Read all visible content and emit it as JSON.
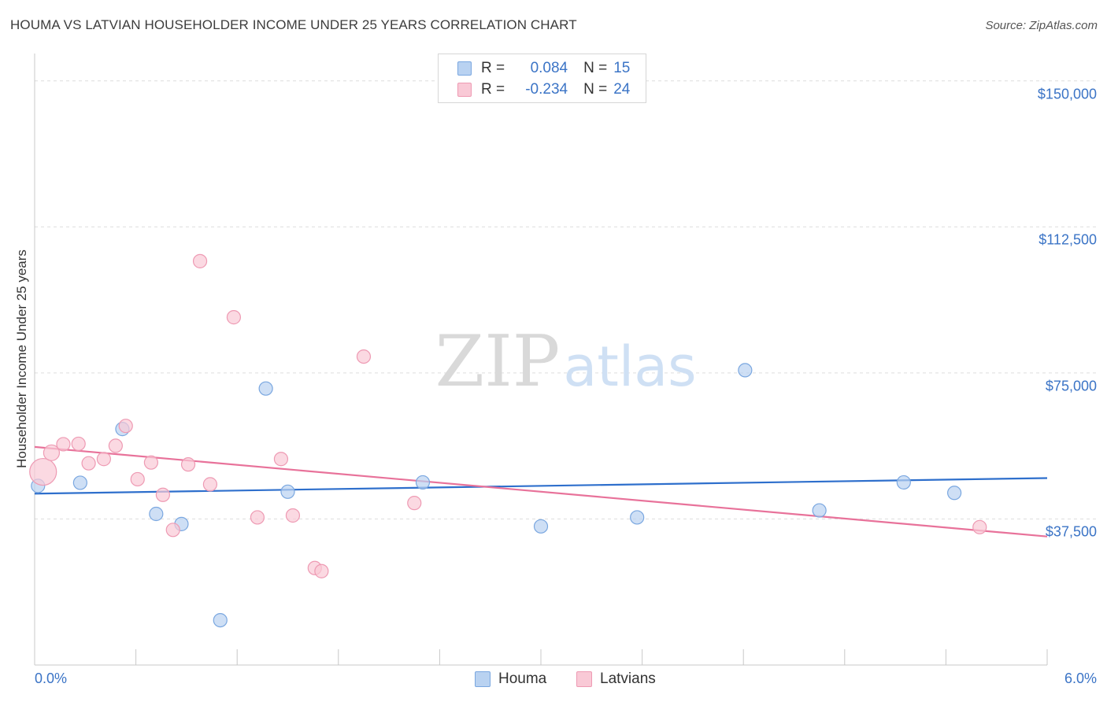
{
  "title": "HOUMA VS LATVIAN HOUSEHOLDER INCOME UNDER 25 YEARS CORRELATION CHART",
  "source": "Source: ZipAtlas.com",
  "watermark": {
    "zip": "ZIP",
    "atlas": "atlas"
  },
  "colors": {
    "houma_fill": "#b9d2f1",
    "houma_stroke": "#7aa7e0",
    "houma_line": "#2e6fcc",
    "latvians_fill": "#f9c9d6",
    "latvians_stroke": "#ee9ab3",
    "latvians_line": "#e8729a",
    "tick_text": "#3b74c6",
    "grid": "#dddddd"
  },
  "legend": {
    "rows": [
      {
        "r_label": "R =",
        "r_value": "0.084",
        "n_label": "N =",
        "n_value": "15"
      },
      {
        "r_label": "R =",
        "r_value": "-0.234",
        "n_label": "N =",
        "n_value": "24"
      }
    ]
  },
  "bottom_legend": [
    "Houma",
    "Latvians"
  ],
  "chart_data": {
    "type": "scatter",
    "title": "HOUMA VS LATVIAN HOUSEHOLDER INCOME UNDER 25 YEARS CORRELATION CHART",
    "xlabel": "",
    "ylabel": "Householder Income Under 25 years",
    "xlim": [
      0,
      6
    ],
    "ylim": [
      0,
      155000
    ],
    "x_tick_labels": [
      "0.0%",
      "6.0%"
    ],
    "y_ticks": [
      37500,
      75000,
      112500,
      150000
    ],
    "y_tick_labels": [
      "$37,500",
      "$75,000",
      "$112,500",
      "$150,000"
    ],
    "grid": true,
    "legend_position": "top-center",
    "series": [
      {
        "name": "Houma",
        "points": [
          [
            0.02,
            46000
          ],
          [
            0.27,
            46800
          ],
          [
            0.52,
            60600
          ],
          [
            0.72,
            38800
          ],
          [
            0.87,
            36200
          ],
          [
            1.1,
            11500
          ],
          [
            1.37,
            71000
          ],
          [
            1.5,
            44500
          ],
          [
            2.3,
            46900
          ],
          [
            3.0,
            35600
          ],
          [
            3.57,
            37900
          ],
          [
            4.21,
            75700
          ],
          [
            4.65,
            39700
          ],
          [
            5.15,
            46900
          ],
          [
            5.45,
            44200
          ]
        ],
        "trend": {
          "x": [
            0,
            6
          ],
          "y": [
            44000,
            48000
          ]
        }
      },
      {
        "name": "Latvians",
        "points": [
          [
            0.05,
            49600
          ],
          [
            0.1,
            54500
          ],
          [
            0.17,
            56700
          ],
          [
            0.26,
            56800
          ],
          [
            0.32,
            51800
          ],
          [
            0.41,
            52900
          ],
          [
            0.48,
            56300
          ],
          [
            0.54,
            61400
          ],
          [
            0.61,
            47700
          ],
          [
            0.69,
            52000
          ],
          [
            0.76,
            43700
          ],
          [
            0.82,
            34700
          ],
          [
            0.91,
            51500
          ],
          [
            0.98,
            103700
          ],
          [
            1.04,
            46400
          ],
          [
            1.18,
            89300
          ],
          [
            1.32,
            37900
          ],
          [
            1.46,
            52900
          ],
          [
            1.53,
            38400
          ],
          [
            1.66,
            24900
          ],
          [
            1.7,
            24100
          ],
          [
            1.95,
            79200
          ],
          [
            2.25,
            41600
          ],
          [
            5.6,
            35400
          ]
        ],
        "trend": {
          "x": [
            0,
            6
          ],
          "y": [
            56000,
            33000
          ]
        }
      }
    ]
  }
}
